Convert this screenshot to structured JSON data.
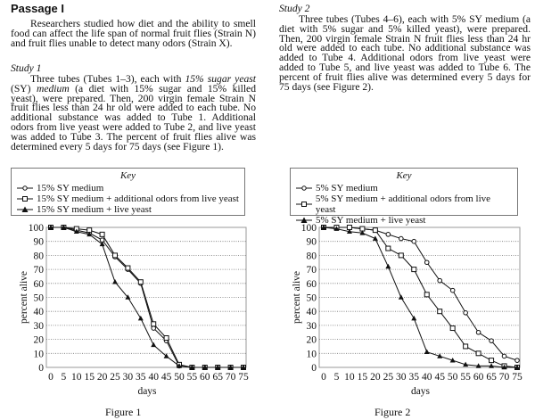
{
  "passage": {
    "title": "Passage I",
    "intro": "Researchers studied how diet and the ability to smell food can affect the life span of normal fruit flies (Strain N) and fruit flies unable to detect many odors (Strain X).",
    "study1": {
      "heading": "Study 1",
      "text_a": "Three tubes (Tubes 1–3), each with ",
      "text_em": "15% sugar yeast",
      "text_b": " (SY) ",
      "text_em2": "medium",
      "text_c": " (a diet with 15% sugar and 15% killed yeast), were prepared. Then, 200 virgin female Strain N fruit flies less than 24 hr old were added to each tube. No additional substance was added to Tube 1. Additional odors from live yeast were added to Tube 2, and live yeast was added to Tube 3. The percent of fruit flies alive was determined every 5 days for 75 days (see Figure 1)."
    },
    "study2": {
      "heading": "Study 2",
      "text": "Three tubes (Tubes 4–6), each with 5% SY medium (a diet with 5% sugar and 5% killed yeast), were prepared. Then, 200 virgin female Strain N fruit flies less than 24 hr old were added to each tube. No additional substance was added to Tube 4. Additional odors from live yeast were added to Tube 5, and live yeast was added to Tube 6. The percent of fruit flies alive was determined every 5 days for 75 days (see Figure 2)."
    }
  },
  "chart_data": [
    {
      "type": "line",
      "caption": "Figure 1",
      "key_title": "Key",
      "xlabel": "days",
      "ylabel": "percent alive",
      "xlim": [
        0,
        75
      ],
      "ylim": [
        0,
        100
      ],
      "x": [
        0,
        5,
        10,
        15,
        20,
        25,
        30,
        35,
        40,
        45,
        50,
        55,
        60,
        65,
        70,
        75
      ],
      "yticks": [
        0,
        10,
        20,
        30,
        40,
        50,
        60,
        70,
        80,
        90,
        100
      ],
      "grid": "horizontal dotted",
      "series": [
        {
          "name": "15% SY medium",
          "marker": "open-circle",
          "values": [
            100,
            100,
            98,
            96,
            91,
            79,
            70,
            60,
            28,
            19,
            1,
            0,
            0,
            0,
            0,
            0
          ]
        },
        {
          "name": "15% SY medium + additional odors from live yeast",
          "marker": "open-square",
          "values": [
            100,
            100,
            99,
            98,
            95,
            80,
            71,
            61,
            31,
            21,
            2,
            0,
            0,
            0,
            0,
            0
          ]
        },
        {
          "name": "15% SY medium + live yeast",
          "marker": "filled-triangle",
          "values": [
            100,
            100,
            97,
            95,
            88,
            61,
            50,
            35,
            16,
            8,
            1,
            0,
            0,
            0,
            0,
            0
          ]
        }
      ]
    },
    {
      "type": "line",
      "caption": "Figure 2",
      "key_title": "Key",
      "xlabel": "days",
      "ylabel": "percent alive",
      "xlim": [
        0,
        75
      ],
      "ylim": [
        0,
        100
      ],
      "x": [
        0,
        5,
        10,
        15,
        20,
        25,
        30,
        35,
        40,
        45,
        50,
        55,
        60,
        65,
        70,
        75
      ],
      "yticks": [
        0,
        10,
        20,
        30,
        40,
        50,
        60,
        70,
        80,
        90,
        100
      ],
      "grid": "horizontal dotted",
      "series": [
        {
          "name": "5% SY medium",
          "marker": "open-circle",
          "values": [
            100,
            100,
            100,
            99,
            98,
            95,
            92,
            90,
            75,
            62,
            55,
            39,
            25,
            19,
            8,
            5
          ]
        },
        {
          "name": "5% SY medium + additional odors from live yeast",
          "marker": "open-square",
          "values": [
            100,
            100,
            100,
            99,
            98,
            85,
            80,
            70,
            52,
            40,
            28,
            15,
            10,
            5,
            1,
            0
          ]
        },
        {
          "name": "5% SY medium + live yeast",
          "marker": "filled-triangle",
          "values": [
            100,
            99,
            97,
            96,
            92,
            72,
            50,
            35,
            11,
            8,
            5,
            2,
            1,
            1,
            0,
            0
          ]
        }
      ]
    }
  ]
}
